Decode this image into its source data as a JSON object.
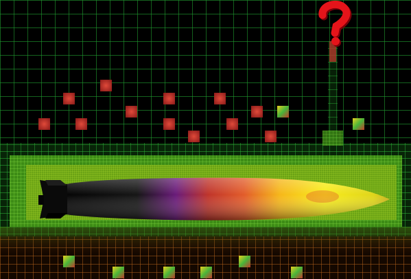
{
  "image": {
    "description_mark": "?",
    "colors": {
      "background": "#000000",
      "grid_coarse": "#1a9a2c",
      "grid_fine": "#2fcf45",
      "refined_zone": "#3c8f1a",
      "question_mark": "#e5141a",
      "body_dark": "#0d0d0d",
      "body_purple": "#7a1f86",
      "body_orange": "#e0651f",
      "body_yellow": "#f6e21a"
    },
    "icons": [
      "question-mark-icon",
      "projectile-body",
      "mesh-grid"
    ]
  }
}
